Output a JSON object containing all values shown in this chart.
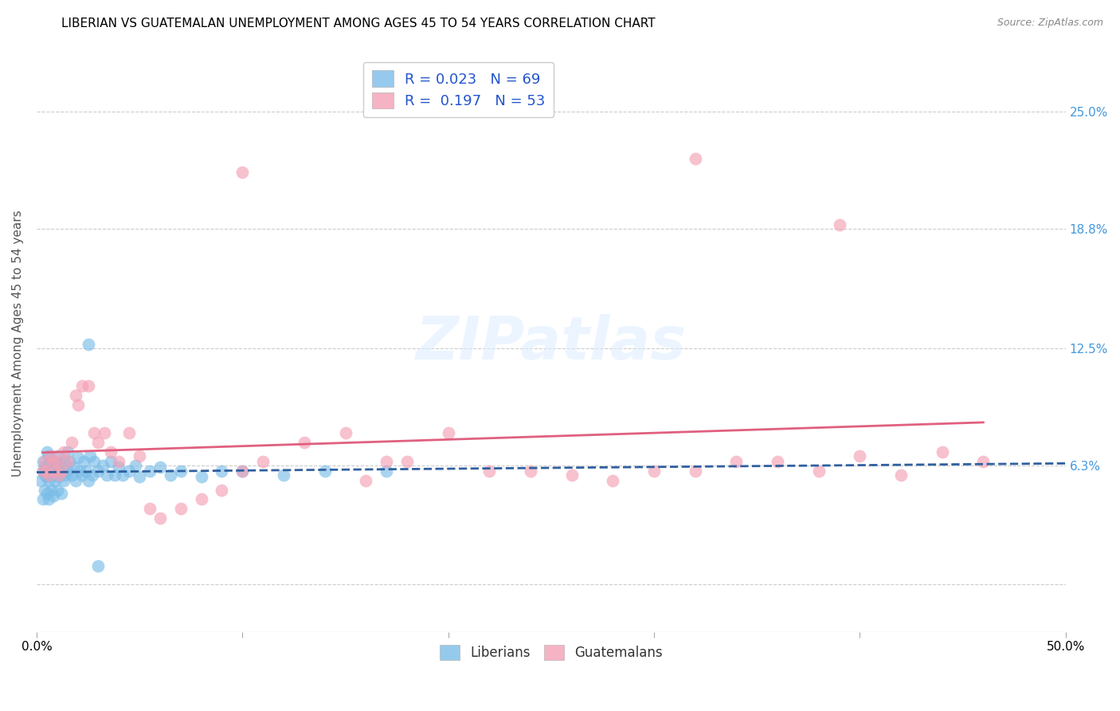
{
  "title": "LIBERIAN VS GUATEMALAN UNEMPLOYMENT AMONG AGES 45 TO 54 YEARS CORRELATION CHART",
  "source": "Source: ZipAtlas.com",
  "ylabel": "Unemployment Among Ages 45 to 54 years",
  "xlim": [
    0.0,
    0.5
  ],
  "ylim": [
    -0.025,
    0.28
  ],
  "yticks": [
    0.0,
    0.063,
    0.125,
    0.188,
    0.25
  ],
  "ytick_labels": [
    "",
    "6.3%",
    "12.5%",
    "18.8%",
    "25.0%"
  ],
  "xticks": [
    0.0,
    0.1,
    0.2,
    0.3,
    0.4,
    0.5
  ],
  "xtick_labels": [
    "0.0%",
    "",
    "",
    "",
    "",
    "50.0%"
  ],
  "liberian_color": "#7BBDE8",
  "guatemalan_color": "#F4A0B5",
  "liberian_line_color": "#3060A0",
  "guatemalan_line_color": "#E06080",
  "legend_R_liberian": "0.023",
  "legend_N_liberian": "69",
  "legend_R_guatemalan": "0.197",
  "legend_N_guatemalan": "53",
  "background_color": "#ffffff",
  "grid_color": "#cccccc",
  "right_tick_color": "#4499DD",
  "title_fontsize": 11,
  "label_fontsize": 11,
  "tick_fontsize": 11,
  "liberian_x": [
    0.002,
    0.003,
    0.003,
    0.003,
    0.004,
    0.004,
    0.004,
    0.005,
    0.005,
    0.005,
    0.005,
    0.006,
    0.006,
    0.006,
    0.007,
    0.007,
    0.007,
    0.008,
    0.008,
    0.008,
    0.009,
    0.009,
    0.01,
    0.01,
    0.01,
    0.011,
    0.011,
    0.012,
    0.012,
    0.013,
    0.013,
    0.014,
    0.015,
    0.015,
    0.016,
    0.017,
    0.018,
    0.019,
    0.02,
    0.021,
    0.022,
    0.023,
    0.024,
    0.025,
    0.026,
    0.027,
    0.028,
    0.03,
    0.032,
    0.034,
    0.036,
    0.038,
    0.04,
    0.042,
    0.045,
    0.048,
    0.05,
    0.055,
    0.06,
    0.065,
    0.07,
    0.08,
    0.09,
    0.1,
    0.12,
    0.14,
    0.17,
    0.025,
    0.03
  ],
  "liberian_y": [
    0.055,
    0.06,
    0.065,
    0.045,
    0.058,
    0.062,
    0.05,
    0.063,
    0.057,
    0.048,
    0.07,
    0.055,
    0.068,
    0.045,
    0.06,
    0.065,
    0.05,
    0.058,
    0.062,
    0.047,
    0.063,
    0.055,
    0.06,
    0.068,
    0.05,
    0.064,
    0.057,
    0.062,
    0.048,
    0.055,
    0.065,
    0.058,
    0.06,
    0.07,
    0.065,
    0.058,
    0.062,
    0.055,
    0.067,
    0.06,
    0.058,
    0.065,
    0.06,
    0.055,
    0.068,
    0.058,
    0.065,
    0.06,
    0.063,
    0.058,
    0.065,
    0.058,
    0.062,
    0.058,
    0.06,
    0.063,
    0.057,
    0.06,
    0.062,
    0.058,
    0.06,
    0.057,
    0.06,
    0.06,
    0.058,
    0.06,
    0.06,
    0.127,
    0.01
  ],
  "guatemalan_x": [
    0.003,
    0.004,
    0.005,
    0.006,
    0.007,
    0.008,
    0.009,
    0.01,
    0.011,
    0.012,
    0.013,
    0.015,
    0.017,
    0.019,
    0.02,
    0.022,
    0.025,
    0.028,
    0.03,
    0.033,
    0.036,
    0.04,
    0.045,
    0.05,
    0.055,
    0.06,
    0.07,
    0.08,
    0.09,
    0.1,
    0.11,
    0.13,
    0.15,
    0.16,
    0.17,
    0.18,
    0.2,
    0.22,
    0.24,
    0.26,
    0.28,
    0.3,
    0.32,
    0.34,
    0.36,
    0.38,
    0.4,
    0.42,
    0.44,
    0.46,
    0.1,
    0.32,
    0.39
  ],
  "guatemalan_y": [
    0.06,
    0.065,
    0.06,
    0.058,
    0.068,
    0.065,
    0.06,
    0.065,
    0.058,
    0.06,
    0.07,
    0.065,
    0.075,
    0.1,
    0.095,
    0.105,
    0.105,
    0.08,
    0.075,
    0.08,
    0.07,
    0.065,
    0.08,
    0.068,
    0.04,
    0.035,
    0.04,
    0.045,
    0.05,
    0.06,
    0.065,
    0.075,
    0.08,
    0.055,
    0.065,
    0.065,
    0.08,
    0.06,
    0.06,
    0.058,
    0.055,
    0.06,
    0.06,
    0.065,
    0.065,
    0.06,
    0.068,
    0.058,
    0.07,
    0.065,
    0.218,
    0.225,
    0.19
  ]
}
